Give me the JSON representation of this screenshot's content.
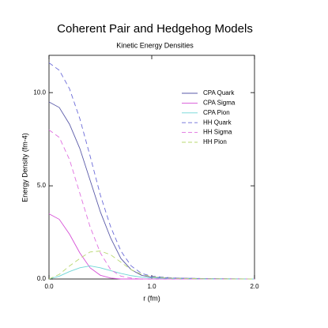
{
  "chart_data": {
    "type": "line",
    "title": "Coherent Pair and Hedgehog Models",
    "subtitle": "Kinetic Energy Densities",
    "x_label": "r (fm)",
    "y_label": "Energy Density (fm-4)",
    "x": [
      0,
      0.1,
      0.2,
      0.3,
      0.4,
      0.5,
      0.6,
      0.7,
      0.8,
      0.9,
      1.0,
      1.2,
      1.5,
      2.0
    ],
    "series": [
      {
        "name": "CPA Quark",
        "color": "#5a5aa8",
        "dashed": false,
        "values": [
          9.5,
          9.2,
          8.3,
          7.0,
          5.3,
          3.6,
          2.2,
          1.1,
          0.5,
          0.2,
          0.1,
          0.05,
          0.02,
          0
        ]
      },
      {
        "name": "CPA Sigma",
        "color": "#d64fd6",
        "dashed": false,
        "values": [
          3.5,
          3.2,
          2.4,
          1.4,
          0.6,
          0.2,
          0.05,
          0,
          0,
          0,
          0,
          0,
          0,
          0
        ]
      },
      {
        "name": "CPA Pion",
        "color": "#6fd6d6",
        "dashed": false,
        "values": [
          0,
          0.15,
          0.4,
          0.6,
          0.7,
          0.6,
          0.45,
          0.3,
          0.18,
          0.1,
          0.06,
          0.02,
          0,
          0
        ]
      },
      {
        "name": "HH Quark",
        "color": "#6a6ad8",
        "dashed": true,
        "values": [
          11.6,
          11.2,
          10.2,
          8.6,
          6.6,
          4.5,
          2.8,
          1.5,
          0.7,
          0.3,
          0.15,
          0.06,
          0.02,
          0
        ]
      },
      {
        "name": "HH Sigma",
        "color": "#e070e0",
        "dashed": true,
        "values": [
          8.0,
          7.6,
          6.4,
          4.6,
          2.8,
          1.4,
          0.5,
          0.15,
          0.05,
          0,
          0,
          0,
          0,
          0
        ]
      },
      {
        "name": "HH Pion",
        "color": "#b8d870",
        "dashed": true,
        "values": [
          0,
          0.25,
          0.7,
          1.1,
          1.45,
          1.5,
          1.3,
          0.9,
          0.5,
          0.25,
          0.12,
          0.04,
          0.01,
          0
        ]
      }
    ],
    "xlim": [
      0,
      2
    ],
    "ylim": [
      0,
      12
    ],
    "xticks": [
      {
        "value": 0,
        "label": "0.0"
      },
      {
        "value": 1,
        "label": "1.0"
      },
      {
        "value": 2,
        "label": "2.0"
      }
    ],
    "yticks": [
      {
        "value": 0,
        "label": "0.0"
      },
      {
        "value": 5,
        "label": "5.0"
      },
      {
        "value": 10,
        "label": "10.0"
      }
    ],
    "legend": "upper right"
  }
}
